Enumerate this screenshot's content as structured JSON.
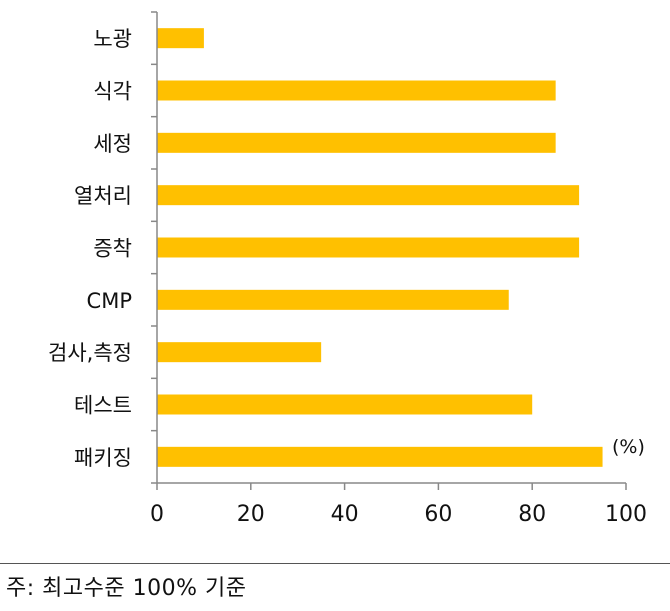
{
  "chart_data": {
    "type": "bar",
    "orientation": "horizontal",
    "categories": [
      "노광",
      "식각",
      "세정",
      "열처리",
      "증착",
      "CMP",
      "검사,측정",
      "테스트",
      "패키징"
    ],
    "values": [
      10,
      85,
      85,
      90,
      90,
      75,
      35,
      80,
      95
    ],
    "xlim": [
      0,
      100
    ],
    "xticks": [
      0,
      20,
      40,
      60,
      80,
      100
    ],
    "unit_label": "(%)",
    "bar_color": "#FFC000",
    "axis_color": "#888888",
    "grid": false,
    "legend": false
  },
  "footnote": "주: 최고수준 100% 기준"
}
